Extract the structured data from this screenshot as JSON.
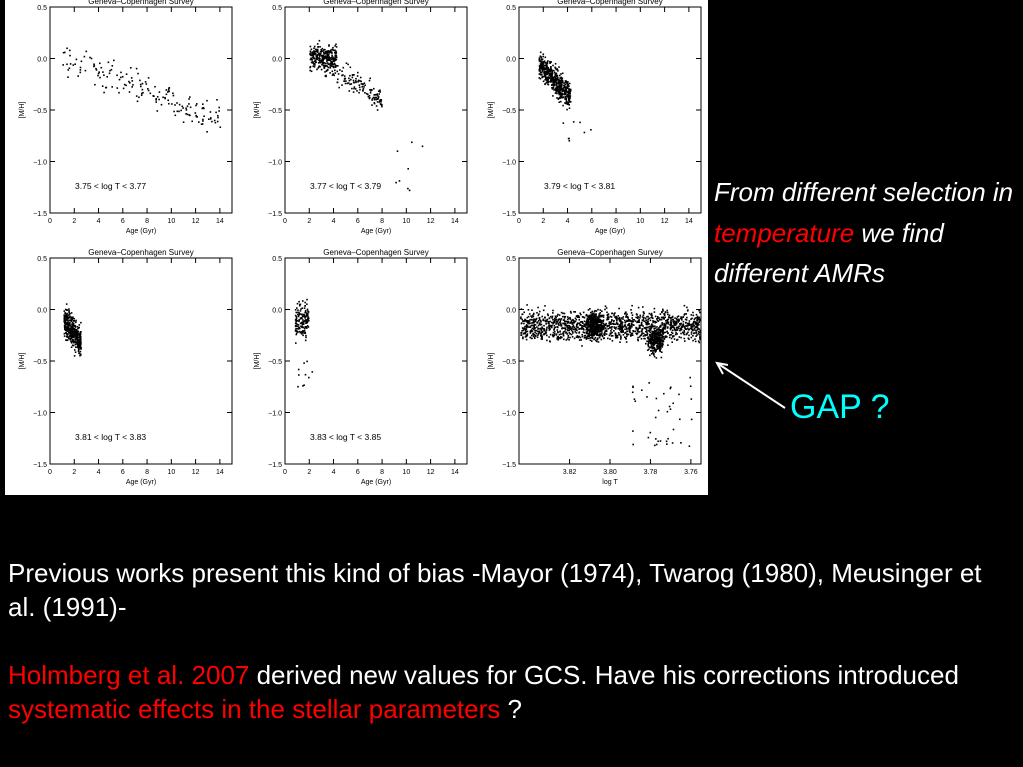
{
  "figure": {
    "panel_title": "Geneva–Copenhagen Survey",
    "y_label": "[M/H]",
    "y_ticks": [
      "0.5",
      "0.0",
      "−0.5",
      "−1.0",
      "−1.5"
    ]
  },
  "chart_data": [
    {
      "type": "scatter",
      "title": "Geneva–Copenhagen Survey",
      "xlabel": "Age (Gyr)",
      "ylabel": "[M/H]",
      "xlim": [
        0,
        15
      ],
      "ylim": [
        -1.5,
        0.5
      ],
      "x_ticks": [
        "0",
        "2",
        "4",
        "6",
        "8",
        "10",
        "12",
        "14"
      ],
      "annotation": "3.75 < log T < 3.77",
      "points_description": "sparse scatter, age ~1–14 Gyr, [M/H] ~ +0.1 to −1.2, declining trend"
    },
    {
      "type": "scatter",
      "title": "Geneva–Copenhagen Survey",
      "xlabel": "Age (Gyr)",
      "ylabel": "[M/H]",
      "xlim": [
        0,
        15
      ],
      "ylim": [
        -1.5,
        0.5
      ],
      "x_ticks": [
        "0",
        "2",
        "4",
        "6",
        "8",
        "10",
        "12",
        "14"
      ],
      "annotation": "3.77 < log T < 3.79",
      "points_description": "dense cluster at age ~2–4 Gyr near [M/H] 0.0, tail to age ~8, [M/H] ~−0.6"
    },
    {
      "type": "scatter",
      "title": "Geneva–Copenhagen Survey",
      "xlabel": "Age (Gyr)",
      "ylabel": "[M/H]",
      "xlim": [
        0,
        15
      ],
      "ylim": [
        -1.5,
        0.5
      ],
      "x_ticks": [
        "0",
        "2",
        "4",
        "6",
        "8",
        "10",
        "12",
        "14"
      ],
      "annotation": "3.79 < log T < 3.81",
      "points_description": "dense cluster at age ~1.5–4 Gyr, [M/H] +0.1 to −0.6"
    },
    {
      "type": "scatter",
      "title": "Geneva–Copenhagen Survey",
      "xlabel": "Age (Gyr)",
      "ylabel": "[M/H]",
      "xlim": [
        0,
        15
      ],
      "ylim": [
        -1.5,
        0.5
      ],
      "x_ticks": [
        "0",
        "2",
        "4",
        "6",
        "8",
        "10",
        "12",
        "14"
      ],
      "annotation": "3.81 < log T < 3.83",
      "points_description": "narrow vertical cluster at age ~1–2.5 Gyr, [M/H] +0.25 to −0.7"
    },
    {
      "type": "scatter",
      "title": "Geneva–Copenhagen Survey",
      "xlabel": "Age (Gyr)",
      "ylabel": "[M/H]",
      "xlim": [
        0,
        15
      ],
      "ylim": [
        -1.5,
        0.5
      ],
      "x_ticks": [
        "0",
        "2",
        "4",
        "6",
        "8",
        "10",
        "12",
        "14"
      ],
      "annotation": "3.83 < log T < 3.85",
      "points_description": "narrow vertical cluster at age ~0.8–2 Gyr, [M/H] +0.3 to −0.7"
    },
    {
      "type": "scatter",
      "title": "Geneva–Copenhagen Survey",
      "xlabel": "log T",
      "ylabel": "[M/H]",
      "xlim": [
        3.845,
        3.755
      ],
      "ylim": [
        -1.5,
        0.5
      ],
      "x_ticks": [
        "3.82",
        "3.80",
        "3.78",
        "3.76"
      ],
      "annotation": "",
      "points_description": "wide band across log T 3.76–3.84, [M/H] +0.2 to −0.6, dense clumps near 3.81 and 3.78, sparse tail to [M/H] −1.3"
    }
  ],
  "side_text": {
    "line1": "From different selection in ",
    "highlight": "temperature",
    "line2": " we find different AMRs"
  },
  "gap_label": "GAP ?",
  "bottom": {
    "para1": "Previous works present this kind of bias -Mayor (1974), Twarog (1980), Meusinger et al. (1991)-",
    "p2_red1": "Holmberg et al. 2007",
    "p2_white": " derived new values for GCS. Have his corrections introduced ",
    "p2_red2": "systematic effects in the stellar parameters",
    "p2_tail": " ?"
  },
  "colors": {
    "accent_red": "#ff0000",
    "gap_cyan": "#00ffff",
    "background": "#000000"
  }
}
